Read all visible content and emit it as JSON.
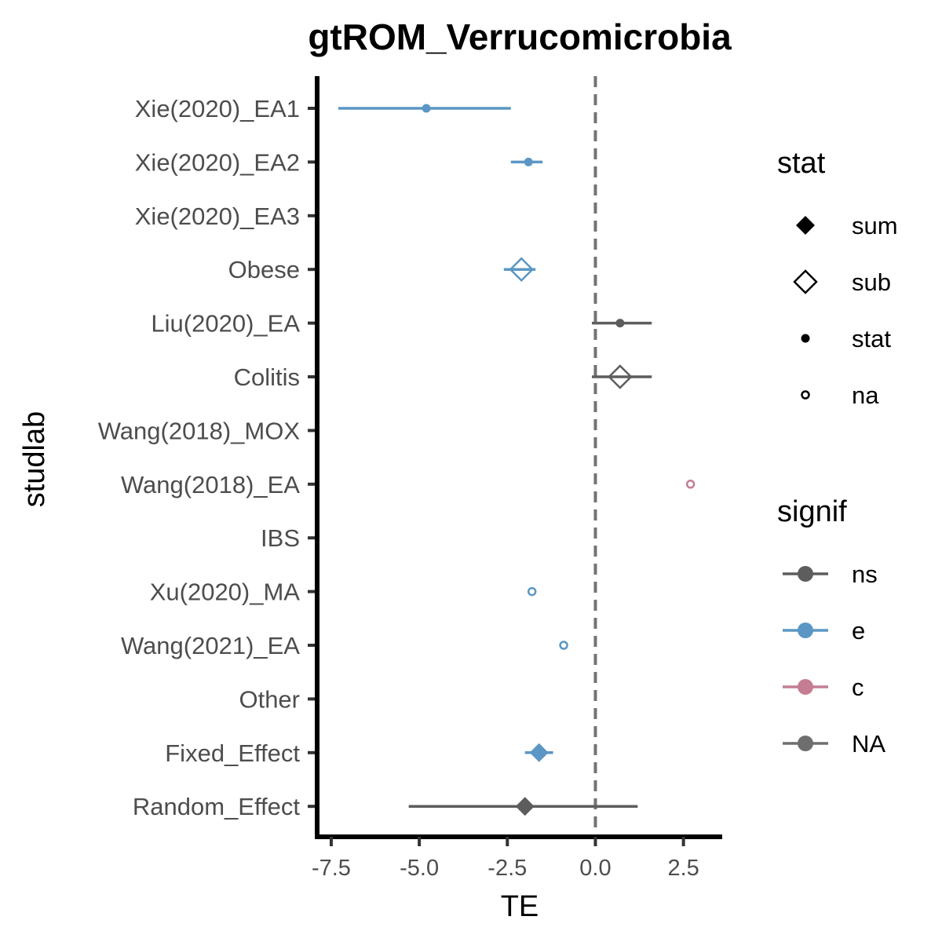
{
  "chart_data": {
    "type": "forest",
    "title": "gtROM_Verrucomicrobia",
    "xlabel": "TE",
    "ylabel": "studlab",
    "xlim": [
      -7.9,
      3.6
    ],
    "xticks": [
      -7.5,
      -5.0,
      -2.5,
      0.0,
      2.5
    ],
    "xtick_labels": [
      "-7.5",
      "-5.0",
      "-2.5",
      "0.0",
      "2.5"
    ],
    "reference_line": 0.0,
    "grid": false,
    "studies": [
      {
        "label": "Xie(2020)_EA1",
        "te": -4.8,
        "lower": -7.3,
        "upper": -2.4,
        "stat": "stat",
        "signif": "e"
      },
      {
        "label": "Xie(2020)_EA2",
        "te": -1.9,
        "lower": -2.4,
        "upper": -1.5,
        "stat": "stat",
        "signif": "e"
      },
      {
        "label": "Xie(2020)_EA3",
        "te": null,
        "lower": null,
        "upper": null,
        "stat": null,
        "signif": null
      },
      {
        "label": "Obese",
        "te": -2.1,
        "lower": -2.6,
        "upper": -1.7,
        "stat": "sub",
        "signif": "e"
      },
      {
        "label": "Liu(2020)_EA",
        "te": 0.7,
        "lower": -0.1,
        "upper": 1.6,
        "stat": "stat",
        "signif": "ns"
      },
      {
        "label": "Colitis",
        "te": 0.7,
        "lower": -0.1,
        "upper": 1.6,
        "stat": "sub",
        "signif": "ns"
      },
      {
        "label": "Wang(2018)_MOX",
        "te": null,
        "lower": null,
        "upper": null,
        "stat": null,
        "signif": null
      },
      {
        "label": "Wang(2018)_EA",
        "te": 2.7,
        "lower": null,
        "upper": null,
        "stat": "na",
        "signif": "c"
      },
      {
        "label": "IBS",
        "te": null,
        "lower": null,
        "upper": null,
        "stat": null,
        "signif": null
      },
      {
        "label": "Xu(2020)_MA",
        "te": -1.8,
        "lower": null,
        "upper": null,
        "stat": "na",
        "signif": "e"
      },
      {
        "label": "Wang(2021)_EA",
        "te": -0.9,
        "lower": null,
        "upper": null,
        "stat": "na",
        "signif": "e"
      },
      {
        "label": "Other",
        "te": null,
        "lower": null,
        "upper": null,
        "stat": null,
        "signif": null
      },
      {
        "label": "Fixed_Effect",
        "te": -1.6,
        "lower": -2.0,
        "upper": -1.2,
        "stat": "sum",
        "signif": "e"
      },
      {
        "label": "Random_Effect",
        "te": -2.0,
        "lower": -5.3,
        "upper": 1.2,
        "stat": "sum",
        "signif": "ns"
      }
    ],
    "legends": [
      {
        "title": "stat",
        "kind": "shape",
        "entries": [
          {
            "label": "sum",
            "shape": "diamond-filled"
          },
          {
            "label": "sub",
            "shape": "diamond-open"
          },
          {
            "label": "stat",
            "shape": "dot"
          },
          {
            "label": "na",
            "shape": "circle-open"
          }
        ]
      },
      {
        "title": "signif",
        "kind": "color",
        "entries": [
          {
            "label": "ns",
            "color": "#5d5d5d"
          },
          {
            "label": "e",
            "color": "#5b97c4"
          },
          {
            "label": "c",
            "color": "#c47d92"
          },
          {
            "label": "NA",
            "color": "#6e6e6e"
          }
        ]
      }
    ],
    "legend_position": "right"
  }
}
